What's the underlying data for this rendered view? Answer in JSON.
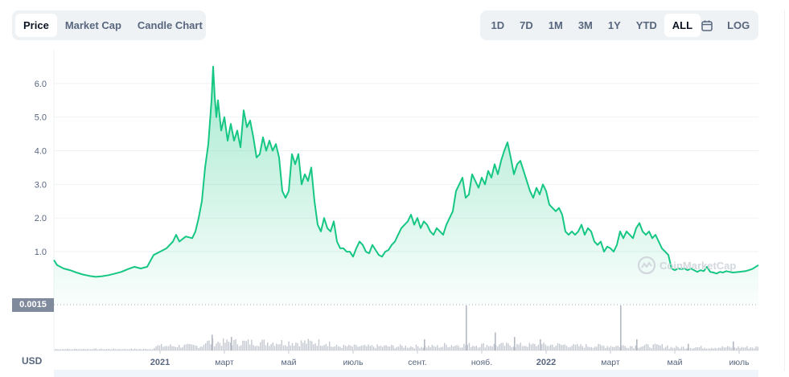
{
  "tabs": [
    {
      "label": "Price",
      "active": true
    },
    {
      "label": "Market Cap",
      "active": false
    },
    {
      "label": "Candle Chart",
      "active": false
    }
  ],
  "ranges": [
    {
      "label": "1D",
      "active": false
    },
    {
      "label": "7D",
      "active": false
    },
    {
      "label": "1M",
      "active": false
    },
    {
      "label": "3M",
      "active": false
    },
    {
      "label": "1Y",
      "active": false
    },
    {
      "label": "YTD",
      "active": false
    },
    {
      "label": "ALL",
      "active": true
    }
  ],
  "log_label": "LOG",
  "calendar_icon": "calendar-icon",
  "price_tag": "0.0015",
  "currency": "USD",
  "watermark": "CoinMarketCap",
  "colors": {
    "line": "#16c784",
    "area_top": "#16c784",
    "volume": "#c4c9d1",
    "grid": "#eff2f5"
  },
  "chart_data": {
    "type": "area",
    "ylabel": "",
    "xlabel": "",
    "ylim": [
      -0.6,
      7.0
    ],
    "yticks": [
      "6.0",
      "5.0",
      "4.0",
      "3.0",
      "2.0",
      "1.0"
    ],
    "ytick_values": [
      6,
      5,
      4,
      3,
      2,
      1
    ],
    "grid": true,
    "xticks": [
      {
        "label": "2021",
        "t": 4.2,
        "bold": true
      },
      {
        "label": "март",
        "t": 6.2,
        "bold": false
      },
      {
        "label": "май",
        "t": 8.2,
        "bold": false
      },
      {
        "label": "июль",
        "t": 10.2,
        "bold": false
      },
      {
        "label": "сент.",
        "t": 12.2,
        "bold": false
      },
      {
        "label": "нояб.",
        "t": 14.2,
        "bold": false
      },
      {
        "label": "2022",
        "t": 16.2,
        "bold": true
      },
      {
        "label": "март",
        "t": 18.2,
        "bold": false
      },
      {
        "label": "май",
        "t": 20.2,
        "bold": false
      },
      {
        "label": "июль",
        "t": 22.2,
        "bold": false
      }
    ],
    "x_domain": [
      0.9,
      22.8
    ],
    "series": [
      {
        "points": [
          [
            0.9,
            0.75
          ],
          [
            1.0,
            0.6
          ],
          [
            1.2,
            0.5
          ],
          [
            1.4,
            0.45
          ],
          [
            1.6,
            0.38
          ],
          [
            1.8,
            0.32
          ],
          [
            2.0,
            0.28
          ],
          [
            2.2,
            0.25
          ],
          [
            2.4,
            0.27
          ],
          [
            2.6,
            0.3
          ],
          [
            2.8,
            0.35
          ],
          [
            3.0,
            0.4
          ],
          [
            3.2,
            0.48
          ],
          [
            3.4,
            0.55
          ],
          [
            3.6,
            0.5
          ],
          [
            3.8,
            0.55
          ],
          [
            4.0,
            0.9
          ],
          [
            4.2,
            1.0
          ],
          [
            4.4,
            1.1
          ],
          [
            4.6,
            1.3
          ],
          [
            4.7,
            1.5
          ],
          [
            4.8,
            1.3
          ],
          [
            5.0,
            1.45
          ],
          [
            5.2,
            1.4
          ],
          [
            5.3,
            1.6
          ],
          [
            5.4,
            2.0
          ],
          [
            5.5,
            2.5
          ],
          [
            5.6,
            3.5
          ],
          [
            5.7,
            4.2
          ],
          [
            5.8,
            5.5
          ],
          [
            5.85,
            6.5
          ],
          [
            5.9,
            5.6
          ],
          [
            5.95,
            5.0
          ],
          [
            6.0,
            5.5
          ],
          [
            6.1,
            4.6
          ],
          [
            6.2,
            5.0
          ],
          [
            6.3,
            4.3
          ],
          [
            6.4,
            4.8
          ],
          [
            6.5,
            4.3
          ],
          [
            6.6,
            4.6
          ],
          [
            6.7,
            4.1
          ],
          [
            6.8,
            5.2
          ],
          [
            6.9,
            4.7
          ],
          [
            7.0,
            4.9
          ],
          [
            7.1,
            4.4
          ],
          [
            7.2,
            3.8
          ],
          [
            7.3,
            3.9
          ],
          [
            7.4,
            4.4
          ],
          [
            7.5,
            4.0
          ],
          [
            7.6,
            4.3
          ],
          [
            7.7,
            4.0
          ],
          [
            7.8,
            4.2
          ],
          [
            7.9,
            3.8
          ],
          [
            8.0,
            2.8
          ],
          [
            8.1,
            2.6
          ],
          [
            8.2,
            2.8
          ],
          [
            8.3,
            3.9
          ],
          [
            8.4,
            3.6
          ],
          [
            8.5,
            3.9
          ],
          [
            8.6,
            3.0
          ],
          [
            8.7,
            3.3
          ],
          [
            8.8,
            3.1
          ],
          [
            8.9,
            3.5
          ],
          [
            9.0,
            2.5
          ],
          [
            9.1,
            1.8
          ],
          [
            9.2,
            1.6
          ],
          [
            9.3,
            2.0
          ],
          [
            9.4,
            1.7
          ],
          [
            9.5,
            1.6
          ],
          [
            9.6,
            1.9
          ],
          [
            9.7,
            1.3
          ],
          [
            9.8,
            1.1
          ],
          [
            9.9,
            1.1
          ],
          [
            10.0,
            1.0
          ],
          [
            10.1,
            1.0
          ],
          [
            10.2,
            0.85
          ],
          [
            10.3,
            1.1
          ],
          [
            10.4,
            1.3
          ],
          [
            10.5,
            1.2
          ],
          [
            10.6,
            1.0
          ],
          [
            10.7,
            0.95
          ],
          [
            10.8,
            1.2
          ],
          [
            10.9,
            1.05
          ],
          [
            11.0,
            0.9
          ],
          [
            11.1,
            0.85
          ],
          [
            11.2,
            1.0
          ],
          [
            11.3,
            1.05
          ],
          [
            11.4,
            1.2
          ],
          [
            11.5,
            1.3
          ],
          [
            11.6,
            1.5
          ],
          [
            11.7,
            1.7
          ],
          [
            11.8,
            1.8
          ],
          [
            11.9,
            1.9
          ],
          [
            12.0,
            2.1
          ],
          [
            12.1,
            1.8
          ],
          [
            12.2,
            2.0
          ],
          [
            12.3,
            1.7
          ],
          [
            12.4,
            1.9
          ],
          [
            12.5,
            1.8
          ],
          [
            12.6,
            1.6
          ],
          [
            12.7,
            1.5
          ],
          [
            12.8,
            1.7
          ],
          [
            12.9,
            1.6
          ],
          [
            13.0,
            1.5
          ],
          [
            13.1,
            1.8
          ],
          [
            13.2,
            2.0
          ],
          [
            13.3,
            2.2
          ],
          [
            13.4,
            2.8
          ],
          [
            13.5,
            3.0
          ],
          [
            13.6,
            3.2
          ],
          [
            13.7,
            2.6
          ],
          [
            13.8,
            2.7
          ],
          [
            13.9,
            3.3
          ],
          [
            14.0,
            3.1
          ],
          [
            14.1,
            2.9
          ],
          [
            14.2,
            3.2
          ],
          [
            14.3,
            3.0
          ],
          [
            14.4,
            3.4
          ],
          [
            14.5,
            3.2
          ],
          [
            14.6,
            3.6
          ],
          [
            14.7,
            3.3
          ],
          [
            14.8,
            3.7
          ],
          [
            14.9,
            4.0
          ],
          [
            15.0,
            4.25
          ],
          [
            15.1,
            3.8
          ],
          [
            15.2,
            3.3
          ],
          [
            15.3,
            3.6
          ],
          [
            15.4,
            3.7
          ],
          [
            15.5,
            3.4
          ],
          [
            15.6,
            3.1
          ],
          [
            15.7,
            2.8
          ],
          [
            15.8,
            2.6
          ],
          [
            15.9,
            2.9
          ],
          [
            16.0,
            2.7
          ],
          [
            16.1,
            3.0
          ],
          [
            16.2,
            2.8
          ],
          [
            16.3,
            2.4
          ],
          [
            16.4,
            2.3
          ],
          [
            16.5,
            2.2
          ],
          [
            16.6,
            2.3
          ],
          [
            16.7,
            2.1
          ],
          [
            16.8,
            1.6
          ],
          [
            16.9,
            1.5
          ],
          [
            17.0,
            1.6
          ],
          [
            17.1,
            1.5
          ],
          [
            17.2,
            1.6
          ],
          [
            17.3,
            1.8
          ],
          [
            17.4,
            1.5
          ],
          [
            17.5,
            1.7
          ],
          [
            17.6,
            1.6
          ],
          [
            17.7,
            1.3
          ],
          [
            17.8,
            1.2
          ],
          [
            17.9,
            1.3
          ],
          [
            18.0,
            1.0
          ],
          [
            18.1,
            1.15
          ],
          [
            18.2,
            1.1
          ],
          [
            18.3,
            1.0
          ],
          [
            18.4,
            1.2
          ],
          [
            18.5,
            1.6
          ],
          [
            18.6,
            1.4
          ],
          [
            18.7,
            1.6
          ],
          [
            18.8,
            1.5
          ],
          [
            18.9,
            1.4
          ],
          [
            19.0,
            1.7
          ],
          [
            19.1,
            1.85
          ],
          [
            19.2,
            1.6
          ],
          [
            19.3,
            1.5
          ],
          [
            19.4,
            1.6
          ],
          [
            19.5,
            1.4
          ],
          [
            19.6,
            1.5
          ],
          [
            19.7,
            1.3
          ],
          [
            19.8,
            1.1
          ],
          [
            19.9,
            1.0
          ],
          [
            20.0,
            0.9
          ],
          [
            20.1,
            0.5
          ],
          [
            20.2,
            0.45
          ],
          [
            20.3,
            0.5
          ],
          [
            20.4,
            0.48
          ],
          [
            20.5,
            0.5
          ],
          [
            20.6,
            0.45
          ],
          [
            20.7,
            0.5
          ],
          [
            20.8,
            0.45
          ],
          [
            20.9,
            0.4
          ],
          [
            21.0,
            0.45
          ],
          [
            21.1,
            0.42
          ],
          [
            21.2,
            0.55
          ],
          [
            21.3,
            0.4
          ],
          [
            21.4,
            0.38
          ],
          [
            21.5,
            0.35
          ],
          [
            21.6,
            0.4
          ],
          [
            21.7,
            0.38
          ],
          [
            21.8,
            0.42
          ],
          [
            21.9,
            0.4
          ],
          [
            22.0,
            0.38
          ],
          [
            22.2,
            0.4
          ],
          [
            22.4,
            0.42
          ],
          [
            22.6,
            0.48
          ],
          [
            22.8,
            0.6
          ]
        ]
      }
    ],
    "volume_spikes": [
      [
        5.8,
        0.35
      ],
      [
        6.4,
        0.3
      ],
      [
        12.4,
        0.25
      ],
      [
        13.7,
        1.0
      ],
      [
        14.6,
        0.4
      ],
      [
        15.2,
        0.3
      ],
      [
        16.0,
        0.25
      ],
      [
        18.5,
        1.0
      ],
      [
        19.0,
        0.25
      ],
      [
        20.6,
        0.15
      ],
      [
        22.0,
        0.2
      ]
    ]
  }
}
